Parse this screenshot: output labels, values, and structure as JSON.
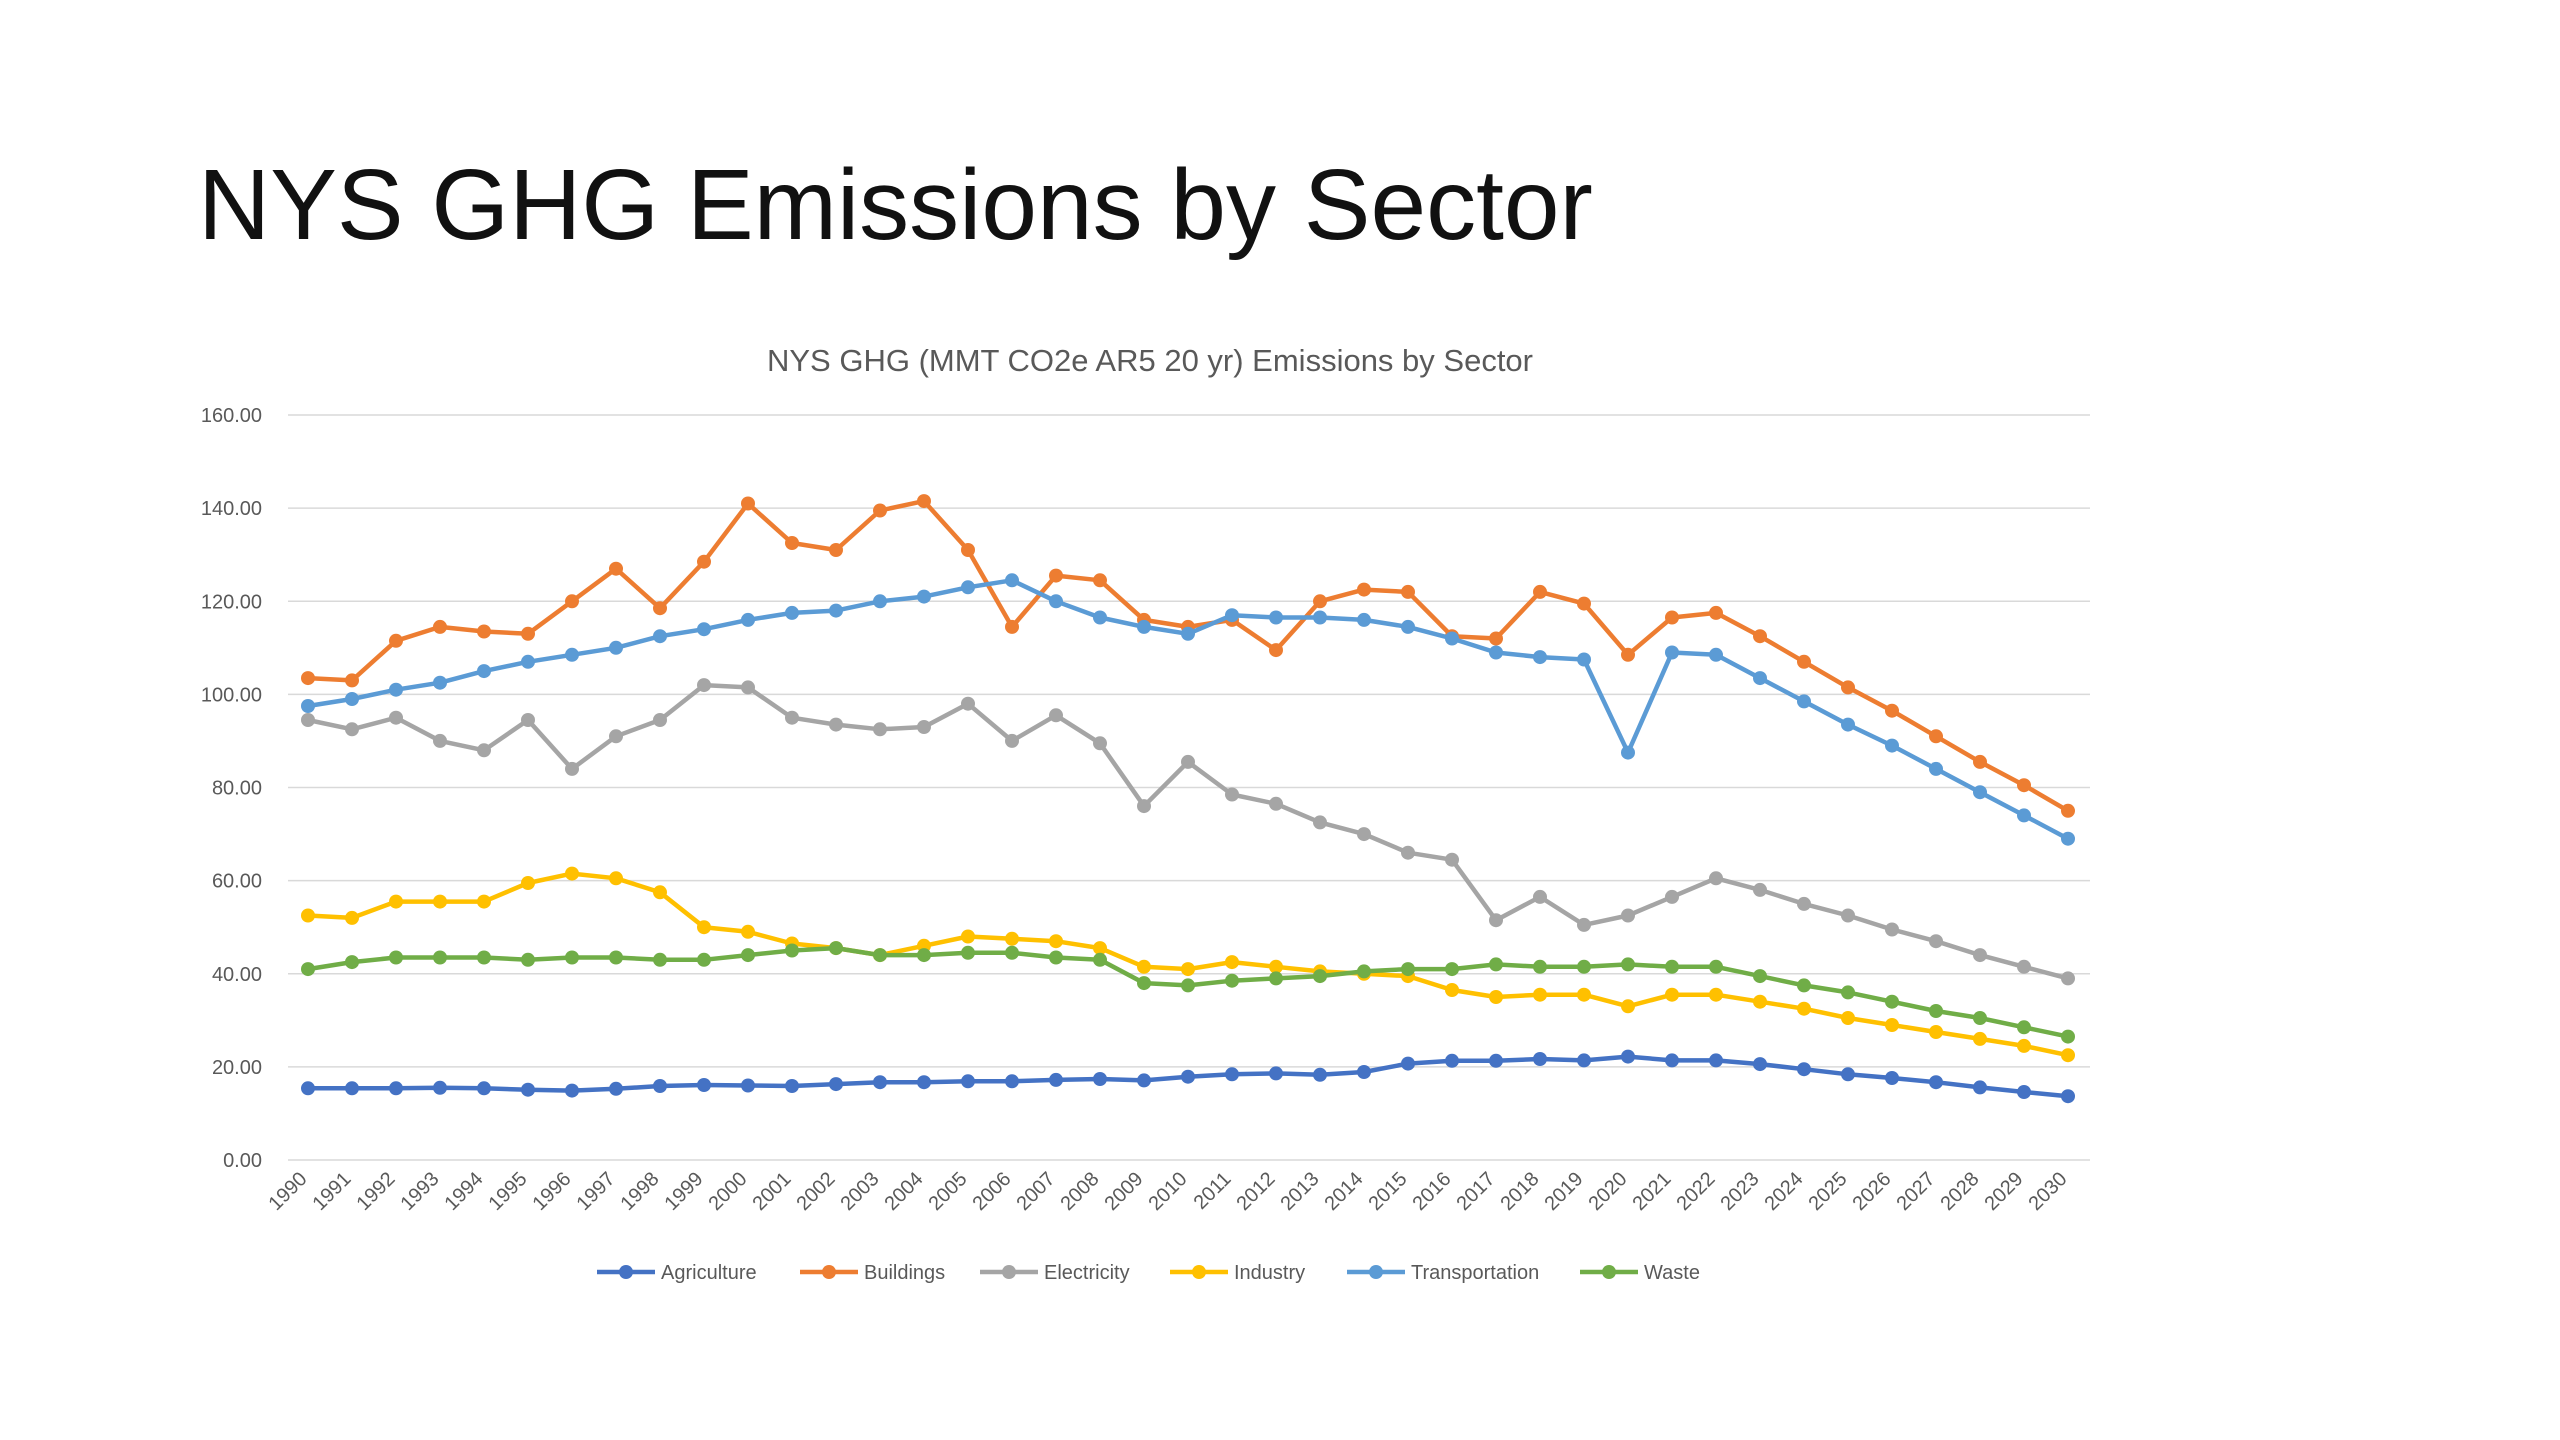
{
  "slide": {
    "title": "NYS GHG Emissions by Sector"
  },
  "chart_data": {
    "type": "line",
    "title": "NYS GHG (MMT CO2e AR5 20 yr) Emissions by Sector",
    "xlabel": "",
    "ylabel": "",
    "ylim": [
      0,
      160
    ],
    "yticks": [
      "0.00",
      "20.00",
      "40.00",
      "60.00",
      "80.00",
      "100.00",
      "120.00",
      "140.00",
      "160.00"
    ],
    "grid": true,
    "legend_position": "bottom",
    "categories": [
      "1990",
      "1991",
      "1992",
      "1993",
      "1994",
      "1995",
      "1996",
      "1997",
      "1998",
      "1999",
      "2000",
      "2001",
      "2002",
      "2003",
      "2004",
      "2005",
      "2006",
      "2007",
      "2008",
      "2009",
      "2010",
      "2011",
      "2012",
      "2013",
      "2014",
      "2015",
      "2016",
      "2017",
      "2018",
      "2019",
      "2020",
      "2021",
      "2022",
      "2023",
      "2024",
      "2025",
      "2026",
      "2027",
      "2028",
      "2029",
      "2030"
    ],
    "series": [
      {
        "name": "Agriculture",
        "color": "#4472c4",
        "values": [
          15.4,
          15.4,
          15.4,
          15.5,
          15.4,
          15.1,
          14.9,
          15.3,
          15.9,
          16.1,
          16.0,
          15.9,
          16.3,
          16.7,
          16.7,
          16.9,
          16.9,
          17.2,
          17.4,
          17.1,
          17.9,
          18.4,
          18.6,
          18.3,
          18.9,
          20.7,
          21.3,
          21.3,
          21.7,
          21.4,
          22.2,
          21.4,
          21.4,
          20.6,
          19.5,
          18.4,
          17.6,
          16.7,
          15.6,
          14.6,
          13.7
        ]
      },
      {
        "name": "Buildings",
        "color": "#ed7d31",
        "values": [
          103.5,
          103.0,
          111.5,
          114.5,
          113.5,
          113.0,
          120.0,
          127.0,
          118.5,
          128.5,
          141.0,
          132.5,
          131.0,
          139.5,
          141.5,
          131.0,
          114.5,
          125.5,
          124.5,
          116.0,
          114.5,
          116.0,
          109.5,
          120.0,
          122.5,
          122.0,
          112.5,
          112.0,
          122.0,
          119.5,
          108.5,
          116.5,
          117.5,
          112.5,
          107.0,
          101.5,
          96.5,
          91.0,
          85.5,
          80.5,
          75.0
        ]
      },
      {
        "name": "Electricity",
        "color": "#a5a5a5",
        "values": [
          94.5,
          92.5,
          95.0,
          90.0,
          88.0,
          94.5,
          84.0,
          91.0,
          94.5,
          102.0,
          101.5,
          95.0,
          93.5,
          92.5,
          93.0,
          98.0,
          90.0,
          95.5,
          89.5,
          76.0,
          85.5,
          78.5,
          76.5,
          72.5,
          70.0,
          66.0,
          64.5,
          51.5,
          56.5,
          50.5,
          52.5,
          56.5,
          60.5,
          58.0,
          55.0,
          52.5,
          49.5,
          47.0,
          44.0,
          41.5,
          39.0
        ]
      },
      {
        "name": "Industry",
        "color": "#ffc000",
        "values": [
          52.5,
          52.0,
          55.5,
          55.5,
          55.5,
          59.5,
          61.5,
          60.5,
          57.5,
          50.0,
          49.0,
          46.5,
          45.5,
          44.0,
          46.0,
          48.0,
          47.5,
          47.0,
          45.5,
          41.5,
          41.0,
          42.5,
          41.5,
          40.5,
          40.0,
          39.5,
          36.5,
          35.0,
          35.5,
          35.5,
          33.0,
          35.5,
          35.5,
          34.0,
          32.5,
          30.5,
          29.0,
          27.5,
          26.0,
          24.5,
          22.5
        ]
      },
      {
        "name": "Transportation",
        "color": "#5b9bd5",
        "values": [
          97.5,
          99.0,
          101.0,
          102.5,
          105.0,
          107.0,
          108.5,
          110.0,
          112.5,
          114.0,
          116.0,
          117.5,
          118.0,
          120.0,
          121.0,
          123.0,
          124.5,
          120.0,
          116.5,
          114.5,
          113.0,
          117.0,
          116.5,
          116.5,
          116.0,
          114.5,
          112.0,
          109.0,
          108.0,
          107.5,
          87.5,
          109.0,
          108.5,
          103.5,
          98.5,
          93.5,
          89.0,
          84.0,
          79.0,
          74.0,
          69.0
        ]
      },
      {
        "name": "Waste",
        "color": "#70ad47",
        "values": [
          41.0,
          42.5,
          43.5,
          43.5,
          43.5,
          43.0,
          43.5,
          43.5,
          43.0,
          43.0,
          44.0,
          45.0,
          45.5,
          44.0,
          44.0,
          44.5,
          44.5,
          43.5,
          43.0,
          38.0,
          37.5,
          38.5,
          39.0,
          39.5,
          40.5,
          41.0,
          41.0,
          42.0,
          41.5,
          41.5,
          42.0,
          41.5,
          41.5,
          39.5,
          37.5,
          36.0,
          34.0,
          32.0,
          30.5,
          28.5,
          26.5
        ]
      }
    ]
  }
}
